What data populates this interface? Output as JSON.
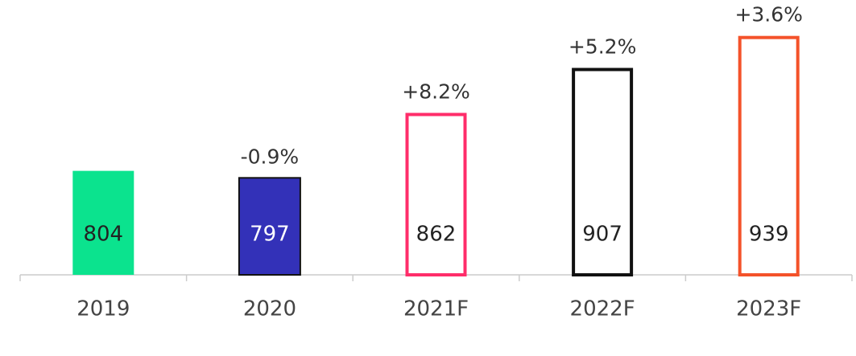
{
  "chart_data": {
    "type": "bar",
    "categories": [
      "2019",
      "2020",
      "2021F",
      "2022F",
      "2023F"
    ],
    "values": [
      804,
      797,
      862,
      907,
      939
    ],
    "annotations": [
      null,
      "-0.9%",
      "+8.2%",
      "+5.2%",
      "+3.6%"
    ],
    "colors": [
      "#0be38e",
      "#3331b8",
      "#ff2d6a",
      "#111111",
      "#f4522a"
    ],
    "filled": [
      true,
      true,
      false,
      false,
      false
    ],
    "ylim": [
      700,
      950
    ]
  }
}
